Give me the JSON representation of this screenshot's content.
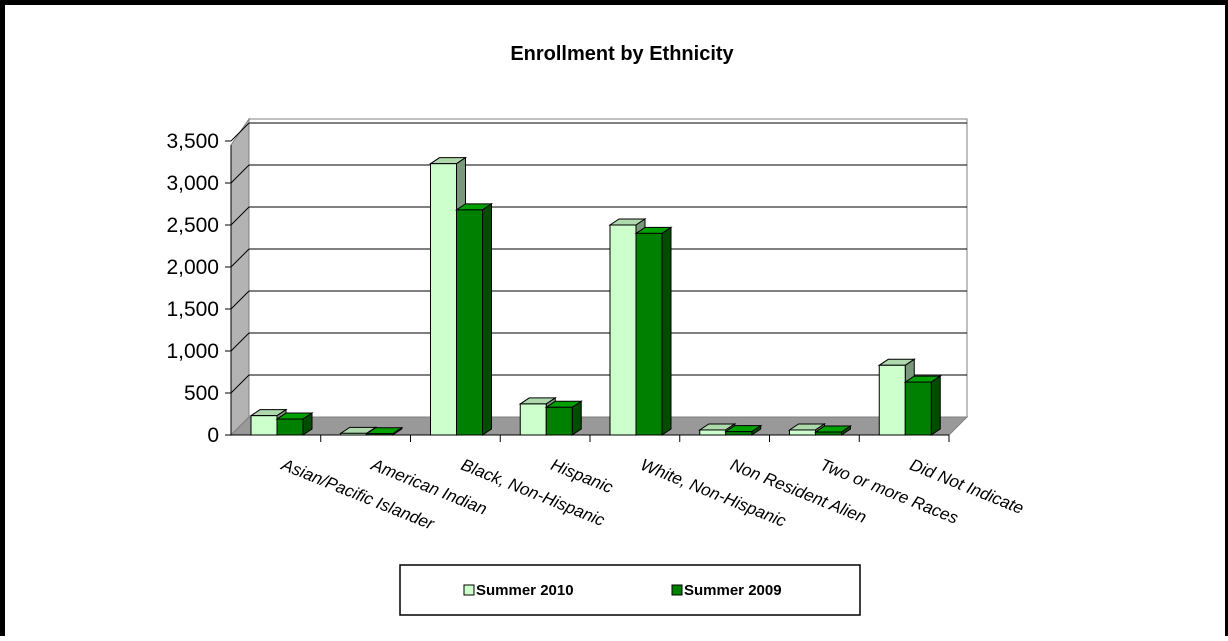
{
  "chart_data": {
    "type": "bar",
    "title": "Enrollment by Ethnicity",
    "xlabel": "",
    "ylabel": "",
    "categories": [
      "Asian/Pacific Islander",
      "American Indian",
      "Black, Non-Hispanic",
      "Hispanic",
      "White, Non-Hispanic",
      "Non Resident Alien",
      "Two or more Races",
      "Did Not Indicate"
    ],
    "series": [
      {
        "name": "Summer 2010",
        "color": "#ccffcc",
        "values": [
          230,
          20,
          3230,
          370,
          2500,
          60,
          60,
          830
        ]
      },
      {
        "name": "Summer 2009",
        "color": "#008000",
        "values": [
          190,
          15,
          2680,
          330,
          2400,
          40,
          35,
          630
        ]
      }
    ],
    "yticks": [
      "0",
      "500",
      "1,000",
      "1,500",
      "2,000",
      "2,500",
      "3,000",
      "3,500"
    ],
    "ylim": [
      0,
      3500
    ],
    "grid": true,
    "legend": "bottom"
  }
}
